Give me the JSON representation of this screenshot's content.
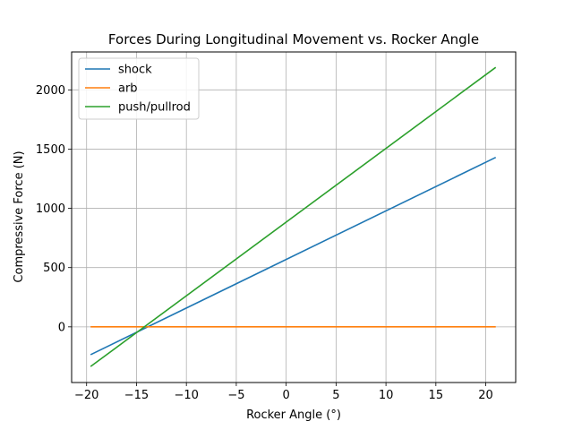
{
  "chart_data": {
    "type": "line",
    "title": "Forces During Longitudinal Movement vs. Rocker Angle",
    "xlabel": "Rocker Angle (°)",
    "ylabel": "Compressive Force (N)",
    "xlim": [
      -21.5,
      23.0
    ],
    "ylim": [
      -470,
      2320
    ],
    "xticks": [
      -20,
      -15,
      -10,
      -5,
      0,
      5,
      10,
      15,
      20
    ],
    "xtick_labels": [
      "−20",
      "−15",
      "−10",
      "−5",
      "0",
      "5",
      "10",
      "15",
      "20"
    ],
    "yticks": [
      0,
      500,
      1000,
      1500,
      2000
    ],
    "ytick_labels": [
      "0",
      "500",
      "1000",
      "1500",
      "2000"
    ],
    "grid": true,
    "legend_position": "top-left",
    "series": [
      {
        "name": "shock",
        "color": "#1f77b4",
        "x": [
          -19.6,
          21.0
        ],
        "y": [
          -235,
          1430
        ]
      },
      {
        "name": "arb",
        "color": "#ff7f0e",
        "x": [
          -19.6,
          21.0
        ],
        "y": [
          0,
          0
        ]
      },
      {
        "name": "push/pullrod",
        "color": "#2ca02c",
        "x": [
          -19.6,
          21.0
        ],
        "y": [
          -335,
          2190
        ]
      }
    ]
  }
}
